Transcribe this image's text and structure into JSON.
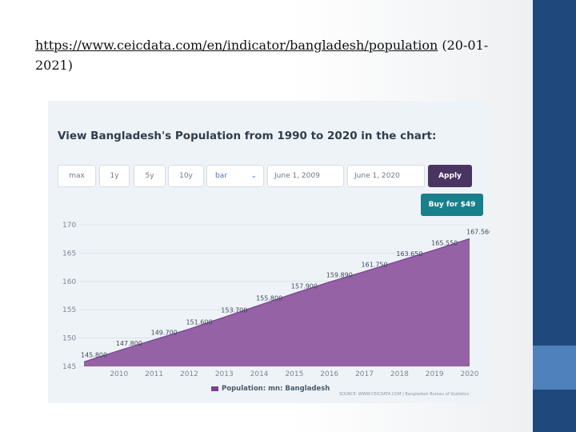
{
  "source": {
    "url": "https://www.ceicdata.com/en/indicator/bangladesh/population",
    "date": "(20-01-2021)"
  },
  "panel": {
    "title": "View Bangladesh's Population from 1990 to 2020 in the chart:",
    "controls": {
      "max": "max",
      "y1": "1y",
      "y5": "5y",
      "y10": "10y",
      "chart_type": "bar",
      "start_date": "June 1, 2009",
      "end_date": "June 1, 2020",
      "apply": "Apply",
      "buy": "Buy for $49"
    },
    "credit": "SOURCE: WWW.CEICDATA.COM | Bangladesh Bureau of Statistics"
  },
  "colors": {
    "area": "#8e5aa0",
    "area_line": "#7c3f93",
    "apply": "#4a3461",
    "buy": "#17808b",
    "band": "#1f497d",
    "accent": "#4f81bd"
  },
  "chart_data": {
    "type": "area",
    "x": [
      "2009",
      "2010",
      "2011",
      "2012",
      "2013",
      "2014",
      "2015",
      "2016",
      "2017",
      "2018",
      "2019",
      "2020"
    ],
    "x_ticks": [
      "2010",
      "2011",
      "2012",
      "2013",
      "2014",
      "2015",
      "2016",
      "2017",
      "2018",
      "2019",
      "2020"
    ],
    "values": [
      145.8,
      147.8,
      149.7,
      151.6,
      153.7,
      155.8,
      157.9,
      159.89,
      161.75,
      163.65,
      165.55,
      167.56
    ],
    "value_labels": [
      "145.800",
      "147.800",
      "149.700",
      "151.600",
      "153.700",
      "155.800",
      "157.900",
      "159.890",
      "161.750",
      "163.650",
      "165.550",
      "167.560"
    ],
    "y_ticks": [
      "145",
      "150",
      "155",
      "160",
      "165",
      "170"
    ],
    "ylim": [
      145,
      170
    ],
    "grid": true,
    "legend": {
      "series": "Population: mn: Bangladesh",
      "placement": "bottom-center"
    }
  }
}
